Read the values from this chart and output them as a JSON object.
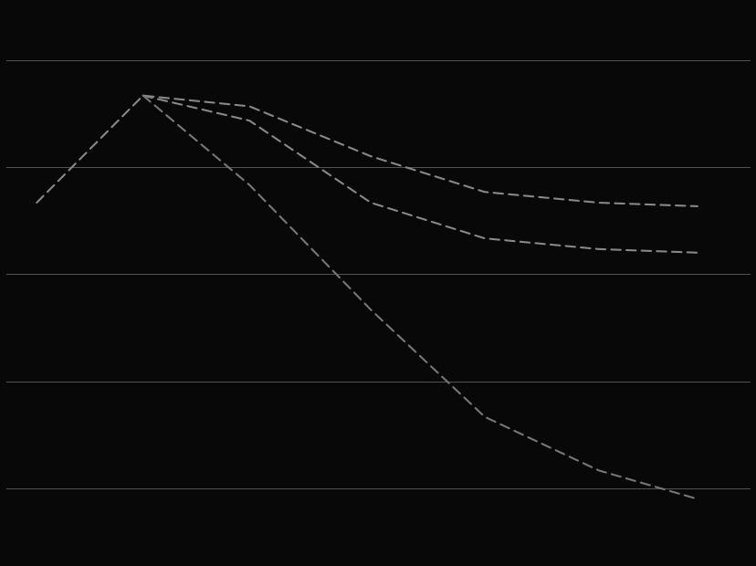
{
  "background_color": "#080808",
  "grid_color": "#555555",
  "figsize": [
    8.29,
    6.2
  ],
  "dpi": 100,
  "series": [
    {
      "x": [
        0.06,
        0.2,
        0.34,
        0.5,
        0.65,
        0.8,
        0.93
      ],
      "y": [
        5.5,
        8.5,
        8.2,
        6.8,
        5.8,
        5.5,
        5.4
      ],
      "color": "#888888",
      "lw": 1.5,
      "dash": [
        5,
        3
      ]
    },
    {
      "x": [
        0.2,
        0.34,
        0.5,
        0.65,
        0.8,
        0.93
      ],
      "y": [
        8.5,
        7.8,
        5.5,
        4.5,
        4.2,
        4.1
      ],
      "color": "#888888",
      "lw": 1.5,
      "dash": [
        5,
        3
      ]
    },
    {
      "x": [
        0.2,
        0.34,
        0.5,
        0.65,
        0.8,
        0.93
      ],
      "y": [
        8.5,
        6.0,
        2.5,
        -0.5,
        -2.0,
        -2.8
      ],
      "color": "#777777",
      "lw": 1.5,
      "dash": [
        5,
        3
      ]
    }
  ],
  "ylim": [
    -4.5,
    11.0
  ],
  "xlim": [
    0.02,
    1.0
  ],
  "yticks": [
    -2.5,
    0.5,
    3.5,
    6.5,
    9.5
  ],
  "xticks": []
}
